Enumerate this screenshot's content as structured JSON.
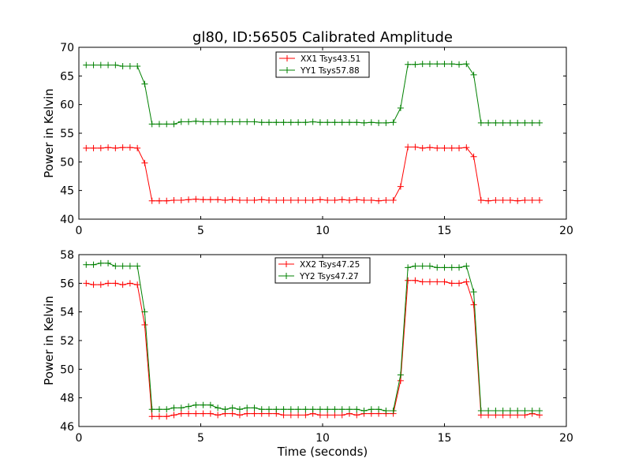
{
  "figure": {
    "title": "gl80, ID:56505 Calibrated Amplitude"
  },
  "chart_data": [
    {
      "type": "line",
      "xlabel": "",
      "ylabel": "Power in Kelvin",
      "xlim": [
        0,
        20
      ],
      "ylim": [
        40,
        70
      ],
      "xticks": [
        0,
        5,
        10,
        15,
        20
      ],
      "yticks": [
        40,
        45,
        50,
        55,
        60,
        65,
        70
      ],
      "grid": false,
      "legend": "top-center",
      "marker": "+",
      "x": [
        0.3,
        0.6,
        0.9,
        1.2,
        1.5,
        1.8,
        2.1,
        2.4,
        2.7,
        3.0,
        3.3,
        3.6,
        3.9,
        4.2,
        4.5,
        4.8,
        5.1,
        5.4,
        5.7,
        6.0,
        6.3,
        6.6,
        6.9,
        7.2,
        7.5,
        7.8,
        8.1,
        8.4,
        8.7,
        9.0,
        9.3,
        9.6,
        9.9,
        10.2,
        10.5,
        10.8,
        11.1,
        11.4,
        11.7,
        12.0,
        12.3,
        12.6,
        12.9,
        13.2,
        13.5,
        13.8,
        14.1,
        14.4,
        14.7,
        15.0,
        15.3,
        15.6,
        15.9,
        16.2,
        16.5,
        16.8,
        17.1,
        17.4,
        17.7,
        18.0,
        18.3,
        18.6,
        18.9
      ],
      "series": [
        {
          "name": "XX1 Tsys43.51",
          "color": "#ff0000",
          "values": [
            52.4,
            52.4,
            52.4,
            52.5,
            52.4,
            52.5,
            52.5,
            52.4,
            49.8,
            43.2,
            43.2,
            43.2,
            43.3,
            43.3,
            43.4,
            43.5,
            43.4,
            43.4,
            43.4,
            43.3,
            43.4,
            43.3,
            43.3,
            43.3,
            43.4,
            43.3,
            43.3,
            43.3,
            43.3,
            43.3,
            43.3,
            43.3,
            43.4,
            43.3,
            43.3,
            43.4,
            43.3,
            43.4,
            43.3,
            43.3,
            43.2,
            43.3,
            43.3,
            45.7,
            52.6,
            52.6,
            52.4,
            52.5,
            52.4,
            52.4,
            52.4,
            52.4,
            52.5,
            50.9,
            43.3,
            43.2,
            43.3,
            43.3,
            43.3,
            43.2,
            43.3,
            43.3,
            43.3
          ]
        },
        {
          "name": "YY1 Tsys57.88",
          "color": "#008000",
          "values": [
            66.9,
            66.9,
            66.9,
            66.9,
            66.9,
            66.7,
            66.7,
            66.7,
            63.6,
            56.6,
            56.6,
            56.6,
            56.6,
            57.0,
            57.0,
            57.1,
            57.0,
            57.0,
            57.0,
            57.0,
            57.0,
            57.0,
            57.0,
            57.0,
            56.9,
            56.9,
            56.9,
            56.9,
            56.9,
            56.9,
            56.9,
            57.0,
            56.9,
            56.9,
            56.9,
            56.9,
            56.9,
            56.9,
            56.8,
            56.9,
            56.8,
            56.8,
            56.9,
            59.4,
            67.0,
            67.0,
            67.1,
            67.1,
            67.1,
            67.1,
            67.1,
            67.0,
            67.1,
            65.2,
            56.8,
            56.8,
            56.8,
            56.8,
            56.8,
            56.8,
            56.8,
            56.8,
            56.8
          ]
        }
      ]
    },
    {
      "type": "line",
      "xlabel": "Time (seconds)",
      "ylabel": "Power in Kelvin",
      "xlim": [
        0,
        20
      ],
      "ylim": [
        46,
        58
      ],
      "xticks": [
        0,
        5,
        10,
        15,
        20
      ],
      "yticks": [
        46,
        48,
        50,
        52,
        54,
        56,
        58
      ],
      "grid": false,
      "legend": "top-center",
      "marker": "+",
      "x": [
        0.3,
        0.6,
        0.9,
        1.2,
        1.5,
        1.8,
        2.1,
        2.4,
        2.7,
        3.0,
        3.3,
        3.6,
        3.9,
        4.2,
        4.5,
        4.8,
        5.1,
        5.4,
        5.7,
        6.0,
        6.3,
        6.6,
        6.9,
        7.2,
        7.5,
        7.8,
        8.1,
        8.4,
        8.7,
        9.0,
        9.3,
        9.6,
        9.9,
        10.2,
        10.5,
        10.8,
        11.1,
        11.4,
        11.7,
        12.0,
        12.3,
        12.6,
        12.9,
        13.2,
        13.5,
        13.8,
        14.1,
        14.4,
        14.7,
        15.0,
        15.3,
        15.6,
        15.9,
        16.2,
        16.5,
        16.8,
        17.1,
        17.4,
        17.7,
        18.0,
        18.3,
        18.6,
        18.9
      ],
      "series": [
        {
          "name": "XX2 Tsys47.25",
          "color": "#ff0000",
          "values": [
            56.0,
            55.9,
            55.9,
            56.0,
            56.0,
            55.9,
            56.0,
            55.9,
            53.1,
            46.7,
            46.7,
            46.7,
            46.8,
            46.9,
            46.9,
            46.9,
            46.9,
            46.9,
            46.8,
            46.9,
            46.9,
            46.8,
            46.9,
            46.9,
            46.9,
            46.9,
            46.9,
            46.8,
            46.8,
            46.8,
            46.8,
            46.9,
            46.8,
            46.8,
            46.8,
            46.8,
            46.9,
            46.8,
            46.9,
            46.9,
            46.9,
            46.9,
            46.9,
            49.2,
            56.2,
            56.2,
            56.1,
            56.1,
            56.1,
            56.1,
            56.0,
            56.0,
            56.1,
            54.5,
            46.8,
            46.8,
            46.8,
            46.8,
            46.8,
            46.8,
            46.8,
            46.9,
            46.8
          ]
        },
        {
          "name": "YY2 Tsys47.27",
          "color": "#008000",
          "values": [
            57.3,
            57.3,
            57.4,
            57.4,
            57.2,
            57.2,
            57.2,
            57.2,
            54.0,
            47.2,
            47.2,
            47.2,
            47.3,
            47.3,
            47.4,
            47.5,
            47.5,
            47.5,
            47.3,
            47.2,
            47.3,
            47.2,
            47.3,
            47.3,
            47.2,
            47.2,
            47.2,
            47.2,
            47.2,
            47.2,
            47.2,
            47.2,
            47.2,
            47.2,
            47.2,
            47.2,
            47.2,
            47.2,
            47.1,
            47.2,
            47.2,
            47.1,
            47.1,
            49.6,
            57.1,
            57.2,
            57.2,
            57.2,
            57.1,
            57.1,
            57.1,
            57.1,
            57.2,
            55.4,
            47.1,
            47.1,
            47.1,
            47.1,
            47.1,
            47.1,
            47.1,
            47.1,
            47.1
          ]
        }
      ]
    }
  ]
}
